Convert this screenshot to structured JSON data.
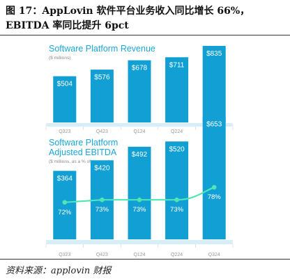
{
  "figure": {
    "title_line1": "图 17：AppLovin 软件平台业务收入同比增长 66%，",
    "title_line2": "EBITDA 率同比提升 6pct",
    "source": "资料来源：applovin 财报"
  },
  "colors": {
    "bar": "#129fd4",
    "line": "#4ee6b4",
    "title": "#1aa7d8",
    "band": "#d6eef8"
  },
  "chart_data": [
    {
      "type": "bar",
      "title": "Software Platform Revenue",
      "subtitle": "($ millions)",
      "categories": [
        "Q323",
        "Q423",
        "Q124",
        "Q224",
        "Q324"
      ],
      "values": [
        504,
        576,
        678,
        711,
        835
      ],
      "value_labels": [
        "$504",
        "$576",
        "$678",
        "$711",
        "$835"
      ],
      "ylim": [
        0,
        880
      ],
      "grid": false
    },
    {
      "type": "bar",
      "title_line1": "Software Platform",
      "title_line2": "Adjusted EBITDA",
      "subtitle": "($ millions, as a % of revenue)",
      "categories": [
        "Q323",
        "Q423",
        "Q124",
        "Q224",
        "Q324"
      ],
      "values": [
        364,
        420,
        492,
        520,
        653
      ],
      "value_labels": [
        "$364",
        "$420",
        "$492",
        "$520",
        "$653"
      ],
      "ylim": [
        0,
        680
      ],
      "series": [
        {
          "values": [
            364,
            420,
            492,
            520,
            653
          ]
        },
        {
          "type": "line",
          "values": [
            72,
            73,
            73,
            73,
            78
          ],
          "labels": [
            "72%",
            "73%",
            "73%",
            "73%",
            "78%"
          ]
        }
      ],
      "line_ylim": [
        50,
        100
      ],
      "grid": false
    }
  ]
}
